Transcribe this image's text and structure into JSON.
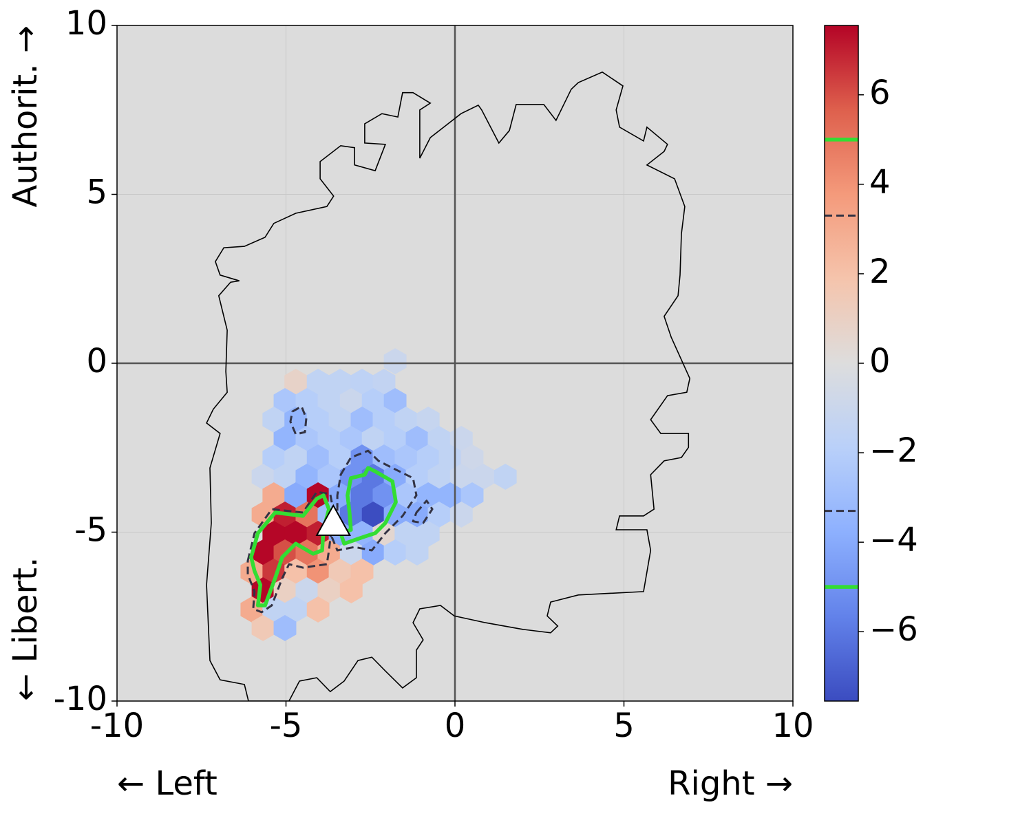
{
  "chart_data": {
    "type": "hexbin",
    "xlabel_left": "← Left",
    "xlabel_right": "Right →",
    "ylabel_top": "Authorit. →",
    "ylabel_bottom": "← Libert.",
    "xlim": [
      -10,
      10
    ],
    "ylim": [
      -10,
      10
    ],
    "xticks": [
      -10,
      -5,
      0,
      5,
      10
    ],
    "yticks": [
      -10,
      -5,
      0,
      5,
      10
    ],
    "grid": true,
    "axhline": 0,
    "axvline": 0,
    "background": "#dcdcdc",
    "colormap": "coolwarm",
    "clim": [
      -7.55,
      7.55
    ],
    "cticks": [
      {
        "value": -6,
        "label": "−6"
      },
      {
        "value": -4,
        "label": "−4"
      },
      {
        "value": -2,
        "label": "−2"
      },
      0,
      2,
      4,
      6
    ],
    "hexbins": {
      "x": [
        -1.77,
        -4.71,
        -4.05,
        -3.4,
        -2.75,
        -2.1,
        -5.03,
        -4.38,
        -3.73,
        -3.07,
        -2.42,
        -1.77,
        -5.36,
        -4.71,
        -4.05,
        -3.4,
        -2.75,
        -2.1,
        -1.45,
        -0.79,
        -5.03,
        -4.38,
        -3.73,
        -3.07,
        -2.42,
        -1.77,
        -1.12,
        -0.47,
        0.19,
        -5.36,
        -4.71,
        -4.05,
        -3.4,
        -2.75,
        -2.1,
        -1.45,
        -0.79,
        -0.14,
        0.51,
        -5.68,
        -5.03,
        -4.38,
        -3.73,
        -3.07,
        -2.42,
        -1.77,
        -1.12,
        -0.47,
        0.19,
        0.84,
        1.49,
        -5.36,
        -4.71,
        -4.05,
        -3.4,
        -2.75,
        -2.1,
        -1.45,
        -0.79,
        -0.14,
        0.51,
        -5.68,
        -5.03,
        -4.38,
        -3.73,
        -3.07,
        -2.42,
        -1.77,
        -1.12,
        -0.47,
        0.19,
        -5.36,
        -4.71,
        -4.05,
        -3.4,
        -2.75,
        -2.1,
        -1.45,
        -0.79,
        -5.68,
        -5.03,
        -4.38,
        -3.73,
        -3.07,
        -2.42,
        -1.77,
        -1.12,
        -6.01,
        -5.36,
        -4.71,
        -4.05,
        -3.4,
        -2.75,
        -5.68,
        -5.03,
        -4.38,
        -3.73,
        -3.07,
        -6.01,
        -5.36,
        -4.71,
        -4.05,
        -5.68,
        -5.03
      ],
      "y": [
        0.06,
        -0.55,
        -0.55,
        -0.55,
        -0.55,
        -0.55,
        -1.12,
        -1.12,
        -1.12,
        -1.12,
        -1.12,
        -1.12,
        -1.67,
        -1.67,
        -1.67,
        -1.67,
        -1.67,
        -1.67,
        -1.67,
        -1.67,
        -2.24,
        -2.24,
        -2.24,
        -2.24,
        -2.24,
        -2.24,
        -2.24,
        -2.24,
        -2.24,
        -2.79,
        -2.79,
        -2.79,
        -2.79,
        -2.79,
        -2.79,
        -2.79,
        -2.79,
        -2.79,
        -2.79,
        -3.36,
        -3.36,
        -3.36,
        -3.36,
        -3.36,
        -3.36,
        -3.36,
        -3.36,
        -3.36,
        -3.36,
        -3.36,
        -3.36,
        -3.91,
        -3.91,
        -3.91,
        -3.91,
        -3.91,
        -3.91,
        -3.91,
        -3.91,
        -3.91,
        -3.91,
        -4.48,
        -4.48,
        -4.48,
        -4.48,
        -4.48,
        -4.48,
        -4.48,
        -4.48,
        -4.48,
        -4.48,
        -5.05,
        -5.05,
        -5.05,
        -5.05,
        -5.05,
        -5.05,
        -5.05,
        -5.05,
        -5.6,
        -5.6,
        -5.6,
        -5.6,
        -5.6,
        -5.6,
        -5.6,
        -5.6,
        -6.17,
        -6.17,
        -6.17,
        -6.17,
        -6.17,
        -6.17,
        -6.72,
        -6.72,
        -6.72,
        -6.72,
        -6.72,
        -7.29,
        -7.29,
        -7.29,
        -7.29,
        -7.84,
        -7.84
      ],
      "values": [
        -1.0,
        0.8,
        -1.5,
        -1.5,
        -1.6,
        -1.4,
        -2.5,
        -2.0,
        -1.5,
        -1.0,
        -2.0,
        -3.0,
        -1.5,
        -3.5,
        -2.0,
        -1.5,
        -3.0,
        -2.0,
        -1.5,
        -1.2,
        -3.5,
        -2.5,
        -2.0,
        -2.5,
        -1.5,
        -2.0,
        -3.0,
        -1.5,
        -1.0,
        -2.0,
        -1.5,
        -3.0,
        -2.0,
        -5.0,
        -3.0,
        -2.5,
        -2.0,
        -1.5,
        -0.8,
        -1.0,
        -1.5,
        -3.5,
        -2.5,
        -5.0,
        -6.0,
        -4.0,
        -2.0,
        -1.5,
        -1.0,
        -1.0,
        -1.5,
        3.0,
        -4.0,
        7.5,
        -4.0,
        -6.0,
        -5.0,
        -2.5,
        -3.5,
        -3.5,
        -2.5,
        3.0,
        7.0,
        5.0,
        -3.0,
        -6.0,
        -7.5,
        -4.0,
        -4.0,
        -2.0,
        -1.0,
        7.5,
        7.5,
        7.0,
        -4.0,
        -3.5,
        0.5,
        -1.5,
        -1.5,
        7.5,
        6.0,
        5.0,
        3.0,
        -1.0,
        -4.0,
        -2.0,
        -1.5,
        3.0,
        6.5,
        2.0,
        4.0,
        1.5,
        2.0,
        7.5,
        1.0,
        -1.0,
        1.0,
        2.0,
        3.0,
        -1.5,
        -1.5,
        2.0,
        1.5,
        -3.0
      ]
    },
    "boundary": {
      "x": [
        -6.11,
        -6.23,
        -6.95,
        -7.25,
        -7.35,
        -7.21,
        -7.25,
        -6.95,
        -7.35,
        -7.15,
        -6.74,
        -6.78,
        -6.74,
        -6.99,
        -6.64,
        -6.38,
        -6.95,
        -7.09,
        -6.84,
        -6.23,
        -5.62,
        -5.36,
        -4.71,
        -3.79,
        -3.59,
        -3.99,
        -3.99,
        -3.38,
        -2.97,
        -2.97,
        -2.36,
        -2.06,
        -2.67,
        -2.67,
        -2.16,
        -1.69,
        -1.55,
        -1.24,
        -0.73,
        -1.04,
        -1.04,
        -0.73,
        0.18,
        0.69,
        0.79,
        1.3,
        1.61,
        1.81,
        2.63,
        2.99,
        3.44,
        3.65,
        4.36,
        4.97,
        4.77,
        4.87,
        5.58,
        5.68,
        6.29,
        6.19,
        5.68,
        6.5,
        6.8,
        6.7,
        6.66,
        6.6,
        6.19,
        6.4,
        6.95,
        6.86,
        6.29,
        5.79,
        6.09,
        6.91,
        6.91,
        6.7,
        6.19,
        5.79,
        5.89,
        5.58,
        4.87,
        4.77,
        5.68,
        5.79,
        5.58,
        3.65,
        2.83,
        2.73,
        3.04,
        2.83,
        2.02,
        0.9,
        -0.02,
        -0.43,
        -1.04,
        -1.24,
        -0.94,
        -1.14,
        -1.14,
        -1.55,
        -2.06,
        -2.46,
        -2.87,
        -3.28,
        -3.69,
        -4.09,
        -4.6,
        -4.91
      ],
      "y": [
        -10.0,
        -9.51,
        -9.37,
        -8.8,
        -6.56,
        -4.73,
        -3.1,
        -2.08,
        -1.77,
        -1.36,
        -0.86,
        -0.24,
        0.98,
        2.0,
        2.4,
        2.44,
        2.61,
        3.01,
        3.42,
        3.46,
        3.73,
        4.14,
        4.44,
        4.64,
        4.95,
        5.46,
        5.97,
        6.44,
        6.38,
        5.87,
        5.7,
        6.48,
        6.52,
        7.09,
        7.39,
        7.29,
        8.01,
        8.01,
        7.7,
        7.5,
        6.07,
        6.68,
        7.39,
        7.64,
        7.5,
        6.52,
        6.89,
        7.66,
        7.66,
        7.19,
        8.11,
        8.31,
        8.62,
        8.21,
        7.5,
        6.99,
        6.58,
        6.99,
        6.48,
        6.27,
        5.87,
        5.46,
        4.64,
        3.83,
        2.61,
        2.0,
        1.39,
        0.77,
        -0.45,
        -0.86,
        -0.96,
        -1.67,
        -2.08,
        -2.08,
        -2.49,
        -2.79,
        -2.89,
        -3.3,
        -4.32,
        -4.52,
        -4.52,
        -4.93,
        -4.93,
        -5.54,
        -6.76,
        -6.86,
        -7.07,
        -7.48,
        -7.78,
        -7.98,
        -7.88,
        -7.68,
        -7.48,
        -7.17,
        -7.27,
        -7.68,
        -8.19,
        -8.49,
        -9.31,
        -9.61,
        -9.11,
        -8.7,
        -8.8,
        -9.41,
        -9.72,
        -9.31,
        -9.41,
        -10.0
      ]
    },
    "contours": [
      {
        "level": 3.3,
        "color": "#333344",
        "linestyle": "dashed",
        "x": [
          -6.13,
          -5.93,
          -5.42,
          -4.5,
          -4.09,
          -3.69,
          -3.59,
          -3.73,
          -3.79,
          -4.5,
          -4.91,
          -5.11,
          -5.42,
          -5.72,
          -5.97,
          -5.93,
          -6.13
        ],
        "y": [
          -5.85,
          -5.03,
          -4.32,
          -4.42,
          -3.81,
          -3.87,
          -4.42,
          -5.54,
          -5.95,
          -6.05,
          -5.95,
          -6.36,
          -7.17,
          -7.37,
          -7.27,
          -6.76,
          -6.25
        ]
      },
      {
        "level": -3.3,
        "color": "#333344",
        "linestyle": "dashed",
        "x": [
          -3.38,
          -3.08,
          -2.57,
          -2.26,
          -1.85,
          -1.24,
          -1.14,
          -1.55,
          -2.06,
          -2.46,
          -2.97,
          -3.48,
          -3.65,
          -3.48,
          -3.48,
          null,
          -4.81,
          -4.54,
          -4.4,
          -4.44,
          -4.71,
          -4.87,
          null,
          -1.14,
          -0.84,
          -0.67,
          -0.94,
          -1.24
        ],
        "y": [
          -3.3,
          -2.79,
          -2.59,
          -2.89,
          -3.1,
          -3.4,
          -3.91,
          -4.52,
          -5.03,
          -5.54,
          -5.44,
          -5.54,
          -5.13,
          -4.73,
          -3.91,
          null,
          -1.43,
          -1.28,
          -1.63,
          -2.04,
          -2.1,
          -1.73,
          null,
          -4.42,
          -4.07,
          -4.32,
          -4.73,
          -4.68
        ]
      },
      {
        "level": 5,
        "color": "#33dd33",
        "linestyle": "solid",
        "x": [
          -6.03,
          -5.83,
          -5.32,
          -4.5,
          -4.09,
          -3.89,
          -3.73,
          -3.89,
          -3.93,
          -4.2,
          -4.71,
          -5.11,
          -5.32,
          -5.62,
          -5.83,
          -5.76,
          -5.93
        ],
        "y": [
          -5.74,
          -5.03,
          -4.42,
          -4.52,
          -4.01,
          -3.91,
          -4.32,
          -4.93,
          -5.54,
          -5.64,
          -5.34,
          -5.74,
          -6.36,
          -7.17,
          -7.17,
          -6.56,
          -6.15
        ]
      },
      {
        "level": -5,
        "color": "#33dd33",
        "linestyle": "solid",
        "x": [
          -3.18,
          -3.08,
          -2.67,
          -2.57,
          -2.36,
          -1.85,
          -1.75,
          -2.06,
          -2.36,
          -2.67,
          -3.28,
          -3.38,
          -3.08,
          -3.12
        ],
        "y": [
          -3.91,
          -3.4,
          -3.3,
          -3.1,
          -3.2,
          -3.5,
          -4.11,
          -4.73,
          -5.03,
          -5.13,
          -5.34,
          -5.03,
          -4.93,
          -4.42
        ]
      }
    ],
    "marker": {
      "x": -3.6,
      "y": -4.7
    }
  }
}
